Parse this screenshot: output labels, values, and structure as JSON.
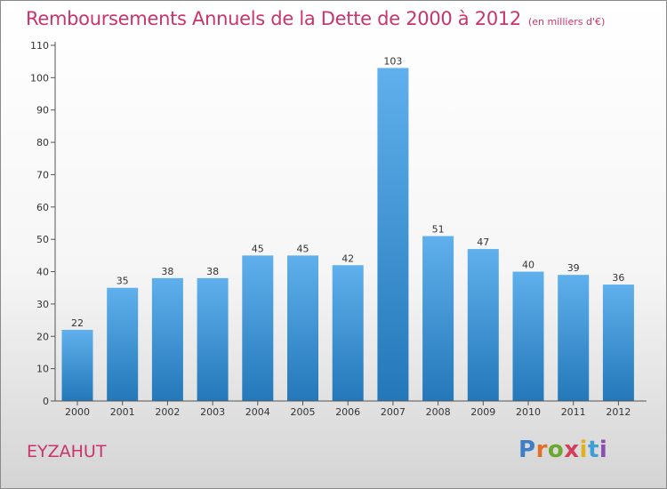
{
  "header": {
    "title": "Remboursements Annuels de la Dette de 2000 à 2012",
    "subtitle": "(en milliers d'€)"
  },
  "footer": {
    "commune": "EYZAHUT",
    "brand": "Proxiti"
  },
  "colors": {
    "accent": "#c8346b",
    "bar_top": "#5fb0ec",
    "bar_bottom": "#2478b9"
  },
  "chart_data": {
    "type": "bar",
    "title": "Remboursements Annuels de la Dette de 2000 à 2012",
    "subtitle": "(en milliers d'€)",
    "categories": [
      "2000",
      "2001",
      "2002",
      "2003",
      "2004",
      "2005",
      "2006",
      "2007",
      "2008",
      "2009",
      "2010",
      "2011",
      "2012"
    ],
    "values": [
      22,
      35,
      38,
      38,
      45,
      45,
      42,
      103,
      51,
      47,
      40,
      39,
      36
    ],
    "ylim": [
      0,
      110
    ],
    "yticks": [
      0,
      10,
      20,
      30,
      40,
      50,
      60,
      70,
      80,
      90,
      100,
      110
    ],
    "grid": false,
    "data_labels": true
  }
}
